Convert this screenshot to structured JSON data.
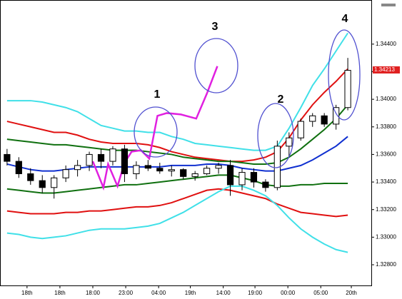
{
  "chart_data": {
    "type": "candlestick",
    "x": [
      0,
      1,
      2,
      3,
      4,
      5,
      6,
      7,
      8,
      9,
      10,
      11,
      12,
      13,
      14,
      15,
      16,
      17,
      18,
      19,
      20,
      21,
      22,
      23,
      24,
      25,
      26,
      27,
      28,
      29
    ],
    "open": [
      1.336,
      1.3355,
      1.3346,
      1.3341,
      1.3336,
      1.3343,
      1.3349,
      1.3352,
      1.336,
      1.3355,
      1.3364,
      1.3346,
      1.3352,
      1.335,
      1.3348,
      1.3349,
      1.3344,
      1.3346,
      1.335,
      1.3352,
      1.3338,
      1.3347,
      1.334,
      1.3336,
      1.3366,
      1.3372,
      1.3384,
      1.3388,
      1.3382,
      1.3394
    ],
    "high": [
      1.3364,
      1.3358,
      1.335,
      1.3345,
      1.3345,
      1.3352,
      1.3356,
      1.3362,
      1.3364,
      1.3366,
      1.3367,
      1.3355,
      1.3356,
      1.3354,
      1.3352,
      1.335,
      1.3348,
      1.3352,
      1.3354,
      1.3356,
      1.335,
      1.335,
      1.3342,
      1.337,
      1.3376,
      1.3386,
      1.339,
      1.339,
      1.3396,
      1.343
    ],
    "low": [
      1.3352,
      1.3343,
      1.3338,
      1.3332,
      1.3328,
      1.334,
      1.3344,
      1.3348,
      1.335,
      1.3352,
      1.334,
      1.3342,
      1.3348,
      1.3346,
      1.3344,
      1.3342,
      1.3341,
      1.3345,
      1.3346,
      1.333,
      1.3334,
      1.3336,
      1.3333,
      1.3334,
      1.3358,
      1.337,
      1.338,
      1.338,
      1.3378,
      1.3392
    ],
    "close": [
      1.3355,
      1.3346,
      1.3341,
      1.3336,
      1.3343,
      1.3349,
      1.3352,
      1.336,
      1.3355,
      1.3364,
      1.3346,
      1.3352,
      1.335,
      1.3348,
      1.3349,
      1.3344,
      1.3346,
      1.335,
      1.3352,
      1.3338,
      1.3347,
      1.334,
      1.3336,
      1.3366,
      1.3372,
      1.3384,
      1.3388,
      1.3382,
      1.3394,
      1.3421
    ],
    "up_color": "#ffffff",
    "down_color": "#000000",
    "bands": [
      {
        "color": "#40e0e8",
        "values": [
          1.3399,
          1.3399,
          1.3399,
          1.3398,
          1.3396,
          1.3394,
          1.3391,
          1.3386,
          1.3381,
          1.3379,
          1.3377,
          1.3377,
          1.3376,
          1.3376,
          1.3373,
          1.3371,
          1.3368,
          1.3367,
          1.3366,
          1.3365,
          1.3364,
          1.3363,
          1.3363,
          1.3366,
          1.3379,
          1.3394,
          1.341,
          1.3422,
          1.3435,
          1.3448
        ]
      },
      {
        "color": "#e01010",
        "values": [
          1.3384,
          1.3382,
          1.338,
          1.3378,
          1.3376,
          1.3376,
          1.3374,
          1.3371,
          1.3369,
          1.3368,
          1.3368,
          1.3368,
          1.3367,
          1.3365,
          1.3362,
          1.336,
          1.3358,
          1.3357,
          1.3356,
          1.3355,
          1.3355,
          1.3356,
          1.3358,
          1.3362,
          1.3372,
          1.3385,
          1.3396,
          1.3405,
          1.3413,
          1.3422
        ]
      },
      {
        "color": "#107010",
        "values": [
          1.3371,
          1.337,
          1.3369,
          1.3368,
          1.3367,
          1.3367,
          1.3366,
          1.3365,
          1.3364,
          1.3363,
          1.3363,
          1.3363,
          1.3362,
          1.3361,
          1.336,
          1.3358,
          1.3357,
          1.3356,
          1.3355,
          1.3355,
          1.3354,
          1.3353,
          1.3353,
          1.3354,
          1.3358,
          1.3364,
          1.3371,
          1.3378,
          1.3386,
          1.3396
        ]
      },
      {
        "color": "#1030d0",
        "values": [
          1.3353,
          1.3351,
          1.3349,
          1.3348,
          1.3348,
          1.3349,
          1.335,
          1.3351,
          1.3351,
          1.3351,
          1.3351,
          1.3351,
          1.3351,
          1.3351,
          1.3352,
          1.3352,
          1.3352,
          1.3353,
          1.3353,
          1.3352,
          1.335,
          1.3349,
          1.3348,
          1.3348,
          1.335,
          1.3352,
          1.3356,
          1.3361,
          1.3366,
          1.3373
        ]
      },
      {
        "color": "#107010",
        "values": [
          1.3335,
          1.3334,
          1.3333,
          1.3332,
          1.3332,
          1.3333,
          1.3334,
          1.3335,
          1.3336,
          1.3337,
          1.3338,
          1.3338,
          1.3339,
          1.334,
          1.3341,
          1.3342,
          1.3343,
          1.3344,
          1.3345,
          1.3345,
          1.3343,
          1.3341,
          1.3338,
          1.3337,
          1.3337,
          1.3338,
          1.3338,
          1.3339,
          1.3339,
          1.3339
        ]
      },
      {
        "color": "#e01010",
        "values": [
          1.3319,
          1.3318,
          1.3317,
          1.3317,
          1.3317,
          1.3318,
          1.3318,
          1.3319,
          1.3319,
          1.332,
          1.3321,
          1.3322,
          1.3322,
          1.3323,
          1.3325,
          1.3328,
          1.3331,
          1.3334,
          1.3335,
          1.3334,
          1.3332,
          1.333,
          1.3328,
          1.3324,
          1.3321,
          1.3318,
          1.3317,
          1.3316,
          1.3315,
          1.3316
        ]
      },
      {
        "color": "#40e0e8",
        "values": [
          1.3303,
          1.3302,
          1.33,
          1.3299,
          1.33,
          1.3301,
          1.3303,
          1.3305,
          1.3306,
          1.3306,
          1.3306,
          1.3307,
          1.3308,
          1.331,
          1.3314,
          1.3318,
          1.3323,
          1.3328,
          1.3333,
          1.3337,
          1.3337,
          1.3334,
          1.333,
          1.3323,
          1.3314,
          1.3306,
          1.33,
          1.3295,
          1.3291,
          1.3289
        ]
      }
    ],
    "overlay": {
      "color": "#e020e0",
      "x": [
        7.3,
        8.2,
        8.6,
        9.4,
        10,
        10.6,
        11.4,
        12.1,
        12.8,
        13.6,
        14.8,
        16.1,
        17,
        17.9
      ],
      "values": [
        1.3355,
        1.3336,
        1.3353,
        1.3337,
        1.3354,
        1.3362,
        1.3363,
        1.3357,
        1.3388,
        1.339,
        1.3389,
        1.3386,
        1.3404,
        1.3424
      ]
    },
    "annotations": [
      "1",
      "2",
      "3",
      "4"
    ],
    "price_label": {
      "value": 1.34213,
      "label": "1.34213"
    },
    "xlim": [
      -0.6,
      31
    ],
    "ylim": [
      1.3265,
      1.3472
    ],
    "xticks": [
      {
        "value": 1.7,
        "label": "18th"
      },
      {
        "value": 4.5,
        "label": "18th"
      },
      {
        "value": 7.3,
        "label": "18:00"
      },
      {
        "value": 10.1,
        "label": "23:00"
      },
      {
        "value": 12.9,
        "label": "04:00"
      },
      {
        "value": 15.6,
        "label": "19th"
      },
      {
        "value": 18.4,
        "label": "14:00"
      },
      {
        "value": 21.1,
        "label": "19:00"
      },
      {
        "value": 23.9,
        "label": "00:00"
      },
      {
        "value": 26.7,
        "label": "05:00"
      },
      {
        "value": 29.3,
        "label": "20th"
      }
    ],
    "yticks": [
      {
        "value": 1.344,
        "label": "1.34400"
      },
      {
        "value": 1.342,
        "label": "1.34200"
      },
      {
        "value": 1.34,
        "label": "1.34000"
      },
      {
        "value": 1.338,
        "label": "1.33800"
      },
      {
        "value": 1.336,
        "label": "1.33600"
      },
      {
        "value": 1.334,
        "label": "1.33400"
      },
      {
        "value": 1.332,
        "label": "1.33200"
      },
      {
        "value": 1.33,
        "label": "1.33000"
      },
      {
        "value": 1.328,
        "label": "1.32800"
      }
    ]
  }
}
